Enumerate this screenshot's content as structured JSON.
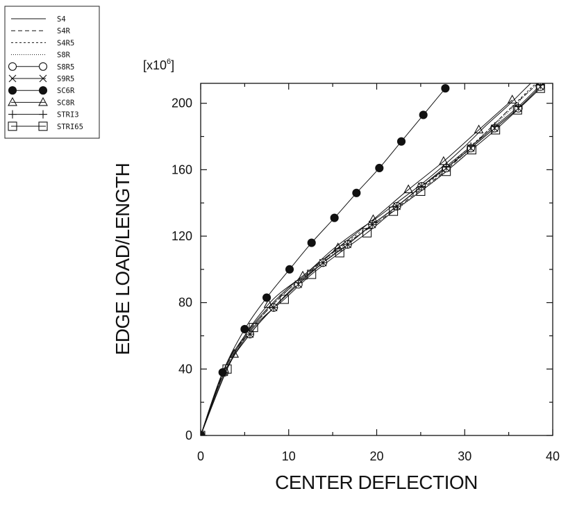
{
  "chart_data": {
    "type": "line",
    "title": "",
    "xlabel": "CENTER DEFLECTION",
    "ylabel": "EDGE LOAD/LENGTH",
    "y_multiplier": {
      "base": "[x10",
      "exponent": "6",
      "close": "]"
    },
    "xlim": [
      0,
      40
    ],
    "ylim": [
      0,
      212
    ],
    "x_ticks": [
      0,
      10,
      20,
      30,
      40
    ],
    "x_tick_labels": [
      "0",
      "10",
      "20",
      "30",
      "40"
    ],
    "y_ticks": [
      0,
      40,
      80,
      120,
      160,
      200
    ],
    "y_tick_labels": [
      "0",
      "40",
      "80",
      "120",
      "160",
      "200"
    ],
    "grid": false,
    "legend_position": "top-left",
    "series": [
      {
        "name": "S4",
        "line": "solid",
        "marker": "none",
        "x": [
          0,
          2.5,
          5,
          7.5,
          10,
          12.5,
          15,
          17.5,
          20,
          22.5,
          25,
          27.5,
          30,
          32.5,
          35,
          37.5,
          40
        ],
        "y": [
          0,
          38,
          60,
          76,
          89,
          100,
          112,
          122,
          131,
          141,
          151,
          162,
          174,
          187,
          199,
          212,
          224
        ]
      },
      {
        "name": "S4R",
        "line": "dashed",
        "marker": "none",
        "x": [
          0,
          2.5,
          5,
          7.5,
          10,
          12.5,
          15,
          17.5,
          20,
          22.5,
          25,
          27.5,
          30,
          32.5,
          35,
          37.5,
          40
        ],
        "y": [
          0,
          37,
          59,
          75,
          88,
          99,
          110,
          119,
          128,
          138,
          148,
          158,
          170,
          183,
          196,
          208,
          220
        ]
      },
      {
        "name": "S4R5",
        "line": "short-dashed",
        "marker": "none",
        "x": [
          0,
          2.5,
          5,
          7.5,
          10,
          12.5,
          15,
          17.5,
          20,
          22.5,
          25,
          27.5,
          30,
          32.5,
          35,
          37.5,
          40
        ],
        "y": [
          0,
          37,
          59,
          75,
          88,
          99,
          110,
          120,
          129,
          139,
          149,
          159,
          171,
          183,
          196,
          209,
          221
        ]
      },
      {
        "name": "S8R",
        "line": "dotted",
        "marker": "none",
        "x": [
          0,
          2.5,
          5,
          7.5,
          10,
          12.5,
          15,
          17.5,
          20,
          22.5,
          25,
          27.5,
          30,
          32.5,
          35,
          37.5,
          40
        ],
        "y": [
          0,
          37,
          59,
          75,
          88,
          99,
          109,
          119,
          128,
          137,
          147,
          157,
          169,
          182,
          195,
          208,
          220
        ]
      },
      {
        "name": "S8R5",
        "line": "solid",
        "marker": "open-circle",
        "x": [
          0,
          2.7,
          5.6,
          8.3,
          11.1,
          13.9,
          16.7,
          19.5,
          22.3,
          25.1,
          27.9,
          30.7,
          33.4,
          36.1,
          38.6
        ],
        "y": [
          0,
          38,
          61,
          77,
          91,
          104,
          115,
          127,
          138,
          150,
          161,
          173,
          185,
          197,
          210
        ]
      },
      {
        "name": "S9R5",
        "line": "solid",
        "marker": "x",
        "x": [
          0,
          2.7,
          5.6,
          8.3,
          11.1,
          13.9,
          16.7,
          19.5,
          22.3,
          25.1,
          27.9,
          30.7,
          33.4,
          36.1,
          38.6
        ],
        "y": [
          0,
          38,
          61,
          77,
          91,
          104,
          115,
          127,
          138,
          150,
          161,
          173,
          185,
          197,
          210
        ]
      },
      {
        "name": "SC6R",
        "line": "solid",
        "marker": "filled-circle",
        "x": [
          0,
          2.5,
          5,
          7.5,
          10.1,
          12.6,
          15.2,
          17.7,
          20.3,
          22.8,
          25.3,
          27.8
        ],
        "y": [
          0,
          38,
          64,
          83,
          100,
          116,
          131,
          146,
          161,
          177,
          193,
          209
        ]
      },
      {
        "name": "SC8R",
        "line": "solid",
        "marker": "open-triangle",
        "x": [
          0,
          3.8,
          7.7,
          11.6,
          15.6,
          19.6,
          23.6,
          27.6,
          31.6,
          35.4
        ],
        "y": [
          0,
          49,
          79,
          96,
          113,
          130,
          148,
          165,
          184,
          202
        ]
      },
      {
        "name": "STRI3",
        "line": "solid",
        "marker": "plus",
        "x": [
          0,
          2.7,
          5.6,
          8.3,
          11.1,
          13.9,
          16.7,
          19.5,
          22.3,
          25.1,
          27.9,
          30.7,
          33.4,
          36.1,
          38.6
        ],
        "y": [
          0,
          38,
          61,
          77,
          92,
          104,
          115,
          127,
          138,
          150,
          162,
          174,
          186,
          198,
          211
        ]
      },
      {
        "name": "STRI65",
        "line": "solid",
        "marker": "open-square",
        "x": [
          0,
          3,
          6,
          9.5,
          12.6,
          15.8,
          18.9,
          21.9,
          25.0,
          27.9,
          30.8,
          33.5,
          36.0,
          38.6
        ],
        "y": [
          0,
          40,
          65,
          82,
          97,
          110,
          122,
          135,
          147,
          159,
          172,
          184,
          196,
          209
        ]
      }
    ]
  }
}
